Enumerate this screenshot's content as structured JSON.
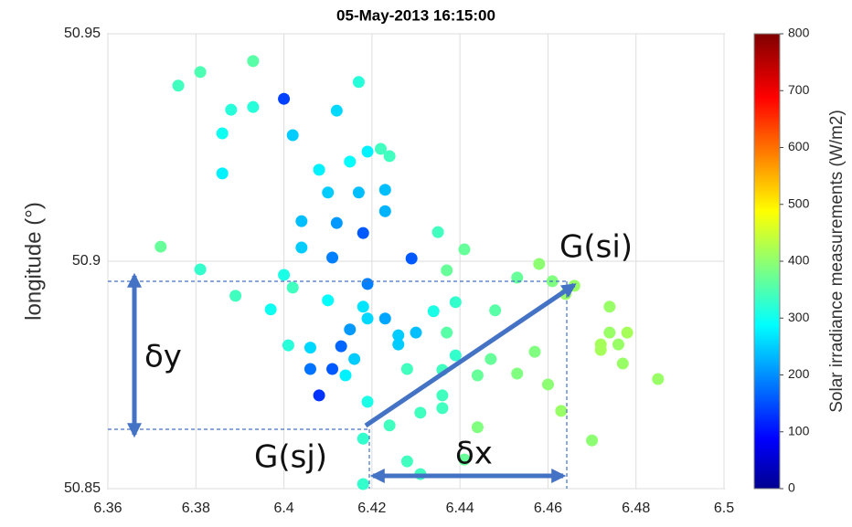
{
  "chart_data": {
    "type": "scatter",
    "title": "05-May-2013 16:15:00",
    "ylabel": "longitude (°)",
    "x": [
      6.376,
      6.381,
      6.393,
      6.388,
      6.393,
      6.386,
      6.386,
      6.4,
      6.402,
      6.417,
      6.412,
      6.419,
      6.422,
      6.424,
      6.408,
      6.415,
      6.41,
      6.417,
      6.423,
      6.423,
      6.404,
      6.412,
      6.418,
      6.404,
      6.411,
      6.372,
      6.381,
      6.4,
      6.402,
      6.419,
      6.429,
      6.435,
      6.441,
      6.437,
      6.389,
      6.397,
      6.41,
      6.418,
      6.406,
      6.401,
      6.415,
      6.413,
      6.406,
      6.411,
      6.414,
      6.416,
      6.408,
      6.419,
      6.423,
      6.426,
      6.426,
      6.43,
      6.434,
      6.439,
      6.437,
      6.448,
      6.428,
      6.436,
      6.439,
      6.447,
      6.444,
      6.453,
      6.457,
      6.453,
      6.458,
      6.461,
      6.464,
      6.466,
      6.46,
      6.463,
      6.474,
      6.474,
      6.476,
      6.478,
      6.472,
      6.472,
      6.477,
      6.485,
      6.47,
      6.436,
      6.436,
      6.431,
      6.424,
      6.419,
      6.418,
      6.444,
      6.428,
      6.431,
      6.441,
      6.418
    ],
    "y": [
      50.9386,
      50.9416,
      50.944,
      50.9333,
      50.9339,
      50.9281,
      50.9193,
      50.9357,
      50.9277,
      50.9394,
      50.9331,
      50.9241,
      50.9247,
      50.9231,
      50.9201,
      50.9219,
      50.9151,
      50.9151,
      50.9157,
      50.911,
      50.9088,
      50.9084,
      50.9062,
      50.903,
      50.9008,
      50.9032,
      50.8982,
      50.897,
      50.8942,
      50.895,
      50.9006,
      50.9064,
      50.9026,
      50.898,
      50.8924,
      50.8894,
      50.8914,
      50.89,
      50.881,
      50.8815,
      50.885,
      50.8813,
      50.8763,
      50.8763,
      50.8749,
      50.8785,
      50.8705,
      50.8874,
      50.8874,
      50.8837,
      50.8817,
      50.8843,
      50.889,
      50.891,
      50.8843,
      50.8892,
      50.8763,
      50.8761,
      50.8793,
      50.8785,
      50.8749,
      50.8753,
      50.8801,
      50.8964,
      50.8994,
      50.8956,
      50.8928,
      50.8946,
      50.8729,
      50.8671,
      50.89,
      50.8843,
      50.8817,
      50.8843,
      50.8817,
      50.8805,
      50.8775,
      50.8741,
      50.8606,
      50.8705,
      50.8677,
      50.8667,
      50.8639,
      50.8691,
      50.861,
      50.8635,
      50.856,
      50.8532,
      50.8564,
      50.851
    ],
    "c": [
      350,
      360,
      370,
      330,
      330,
      310,
      290,
      150,
      260,
      330,
      270,
      290,
      350,
      350,
      290,
      300,
      260,
      250,
      250,
      240,
      250,
      220,
      170,
      260,
      200,
      380,
      340,
      320,
      350,
      200,
      170,
      350,
      380,
      380,
      350,
      310,
      300,
      280,
      270,
      330,
      220,
      180,
      190,
      170,
      290,
      260,
      140,
      270,
      230,
      260,
      260,
      250,
      320,
      340,
      370,
      370,
      350,
      350,
      340,
      380,
      380,
      400,
      400,
      380,
      410,
      400,
      420,
      420,
      410,
      420,
      420,
      420,
      420,
      430,
      430,
      430,
      420,
      420,
      410,
      350,
      350,
      350,
      350,
      320,
      340,
      400,
      350,
      350,
      380,
      340
    ],
    "xlim": [
      6.36,
      6.5
    ],
    "xticks": [
      6.36,
      6.38,
      6.4,
      6.42,
      6.44,
      6.46,
      6.48,
      6.5
    ],
    "ylim": [
      50.85,
      50.95
    ],
    "yticks": [
      50.85,
      50.9,
      50.95
    ],
    "grid": true,
    "colormap": "jet",
    "colorbar": {
      "label": "Solar irradiance measurements (W/m2)",
      "lim": [
        0,
        800
      ],
      "ticks": [
        0,
        100,
        200,
        300,
        400,
        500,
        600,
        700,
        800
      ]
    },
    "annotations": [
      "G(si)",
      "G(sj)",
      "δx",
      "δy"
    ]
  }
}
